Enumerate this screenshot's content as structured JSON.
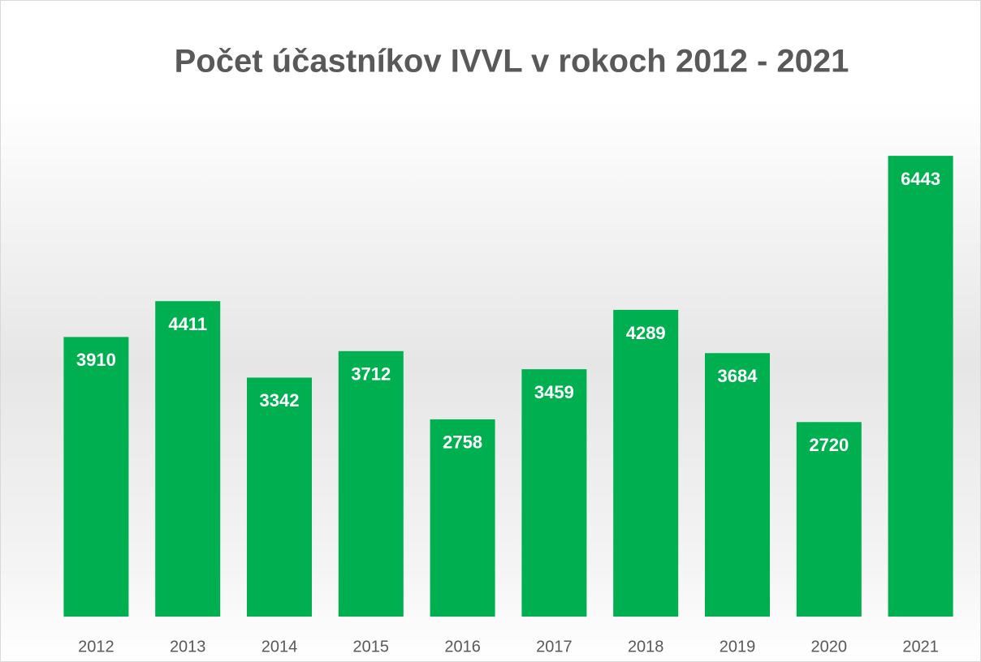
{
  "chart_data": {
    "type": "bar",
    "title": "Počet účastníkov IVVL v rokoch 2012 - 2021",
    "categories": [
      "2012",
      "2013",
      "2014",
      "2015",
      "2016",
      "2017",
      "2018",
      "2019",
      "2020",
      "2021"
    ],
    "values": [
      3910,
      4411,
      3342,
      3712,
      2758,
      3459,
      4289,
      3684,
      2720,
      6443
    ],
    "color": "#00b050",
    "ylim": [
      0,
      7000
    ],
    "grid": false
  }
}
